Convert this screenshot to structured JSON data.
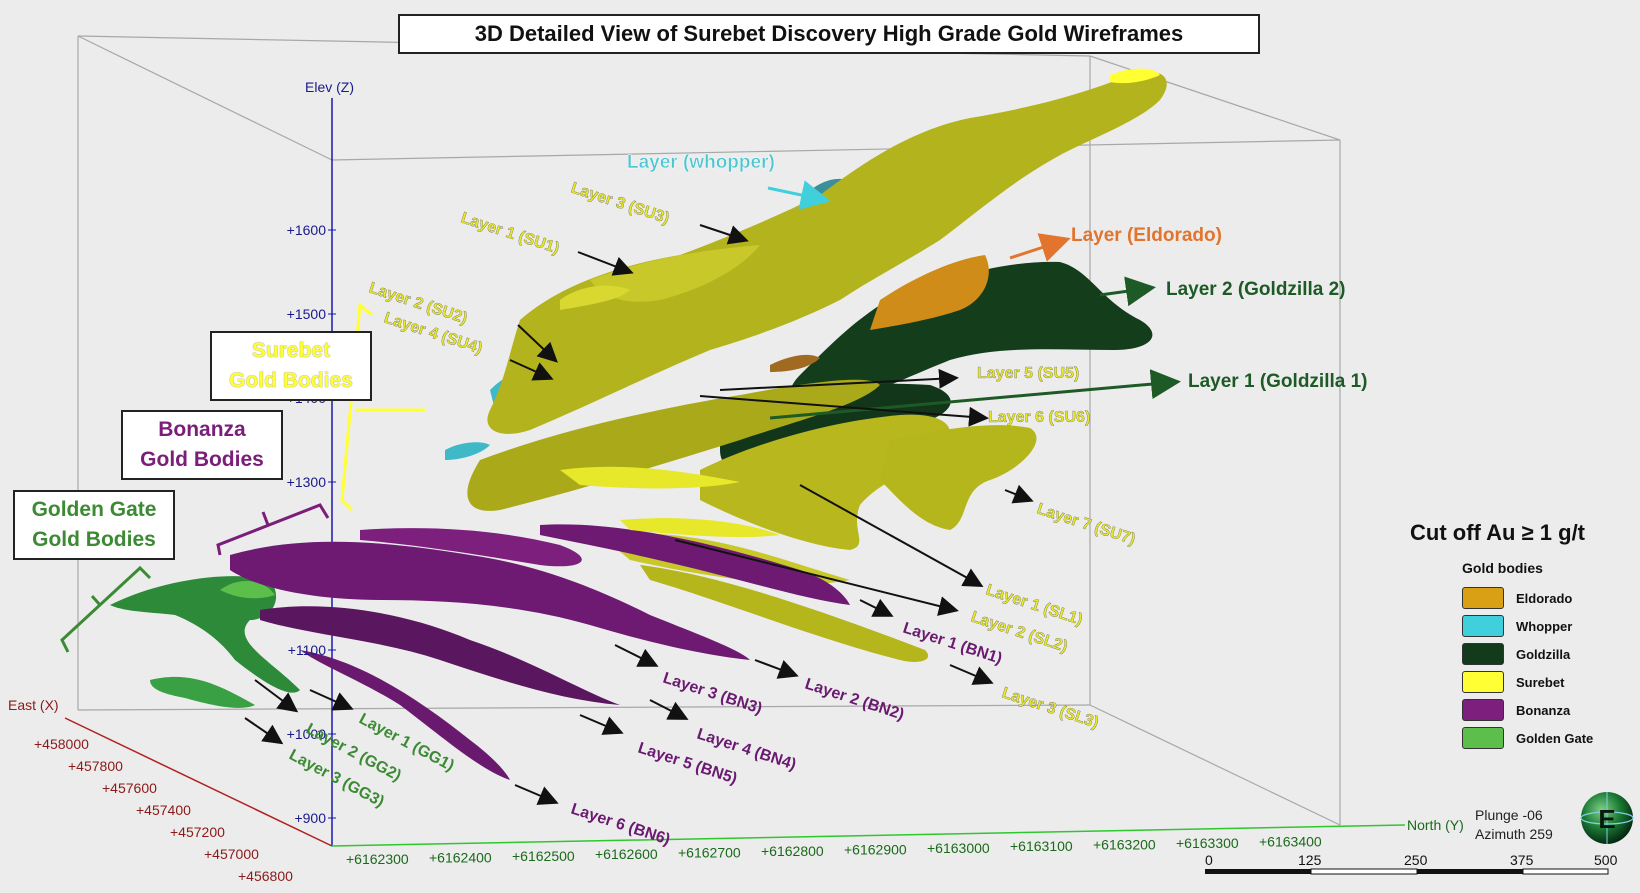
{
  "title": "3D Detailed View of Surebet Discovery High Grade Gold Wireframes",
  "group_boxes": {
    "surebet": [
      "Surebet",
      "Gold Bodies"
    ],
    "bonanza": [
      "Bonanza",
      "Gold Bodies"
    ],
    "golden_gate": [
      "Golden Gate",
      "Gold Bodies"
    ]
  },
  "axes": {
    "elev_label": "Elev (Z)",
    "elev_ticks": [
      "+1600",
      "+1500",
      "+1400",
      "+1300",
      "+1100",
      "+1000",
      "+900"
    ],
    "east_label": "East (X)",
    "east_ticks": [
      "+458000",
      "+457800",
      "+457600",
      "+457400",
      "+457200",
      "+457000",
      "+456800"
    ],
    "north_label": "North (Y)",
    "north_ticks": [
      "+6162300",
      "+6162400",
      "+6162500",
      "+6162600",
      "+6162700",
      "+6162800",
      "+6162900",
      "+6163000",
      "+6163100",
      "+6163200",
      "+6163300",
      "+6163400"
    ]
  },
  "labels": {
    "whopper": "Layer (whopper)",
    "su3": "Layer 3 (SU3)",
    "su1": "Layer 1 (SU1)",
    "su2": "Layer 2 (SU2)",
    "su4": "Layer 4 (SU4)",
    "eldorado": "Layer (Eldorado)",
    "gz2": "Layer 2 (Goldzilla 2)",
    "gz1": "Layer 1 (Goldzilla 1)",
    "su5": "Layer 5 (SU5)",
    "su6": "Layer 6 (SU6)",
    "su7": "Layer 7 (SU7)",
    "sl1": "Layer 1 (SL1)",
    "sl2": "Layer 2 (SL2)",
    "bn1": "Layer 1 (BN1)",
    "sl3": "Layer 3 (SL3)",
    "bn2": "Layer 2 (BN2)",
    "bn3": "Layer 3 (BN3)",
    "bn4": "Layer 4 (BN4)",
    "bn5": "Layer 5 (BN5)",
    "bn6": "Layer 6 (BN6)",
    "gg1": "Layer 1 (GG1)",
    "gg2": "Layer 2 (GG2)",
    "gg3": "Layer 3 (GG3)"
  },
  "cutoff": "Cut off Au ≥ 1 g/t",
  "legend": {
    "title": "Gold bodies",
    "items": [
      {
        "label": "Eldorado",
        "color": "#d9a015"
      },
      {
        "label": "Whopper",
        "color": "#3fd0dc"
      },
      {
        "label": "Goldzilla",
        "color": "#133a1a"
      },
      {
        "label": "Surebet",
        "color": "#ffff33"
      },
      {
        "label": "Bonanza",
        "color": "#7d1f7d"
      },
      {
        "label": "Golden Gate",
        "color": "#5cbf4c"
      }
    ]
  },
  "orientation": {
    "plunge": "Plunge -06",
    "azimuth": "Azimuth 259",
    "compass": "E"
  },
  "scale": {
    "labels": [
      "0",
      "125",
      "250",
      "375",
      "500"
    ]
  },
  "colors": {
    "surebet_body": "#b8b81a",
    "surebet_text": "#e8e82a",
    "goldzilla_body": "#143d1c",
    "goldzilla_text": "#1e5a26",
    "bonanza_body": "#6e1a72",
    "bonanza_text": "#6a1a70",
    "golden_gate_body": "#2f8a38",
    "golden_gate_text": "#3c8a34",
    "whopper_text": "#4ec6d0",
    "eldorado_text": "#e2742e"
  }
}
